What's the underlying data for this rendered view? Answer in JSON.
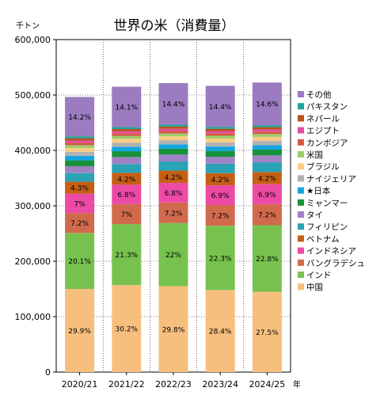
{
  "chart_data": {
    "type": "bar",
    "stacked": true,
    "title": "世界の米（消費量）",
    "unit_label": "千トン",
    "x_unit": "年",
    "categories": [
      "2020/21",
      "2021/22",
      "2022/23",
      "2023/24",
      "2024/25"
    ],
    "ylim": [
      0,
      600000
    ],
    "y_ticks": [
      "0",
      "100,000",
      "200,000",
      "300,000",
      "400,000",
      "500,000",
      "600,000"
    ],
    "legend_position": "right",
    "series": [
      {
        "name": "中国",
        "color": "#f7bf7e",
        "values": [
          150000,
          157000,
          155000,
          148000,
          145000
        ],
        "labels": [
          "29.9%",
          "30.2%",
          "29.8%",
          "28.4%",
          "27.5%"
        ]
      },
      {
        "name": "インド",
        "color": "#77c24f",
        "values": [
          101000,
          110000,
          114000,
          116000,
          120000
        ],
        "labels": [
          "20.1%",
          "21.3%",
          "22%",
          "22.3%",
          "22.8%"
        ]
      },
      {
        "name": "バングラデシュ",
        "color": "#d16a4d",
        "values": [
          36000,
          36000,
          37000,
          37500,
          38000
        ],
        "labels": [
          "7.2%",
          "7%",
          "7.2%",
          "7.2%",
          "7.2%"
        ]
      },
      {
        "name": "インドネシア",
        "color": "#ed4aa6",
        "values": [
          35000,
          35000,
          35500,
          35500,
          36000
        ],
        "labels": [
          "7%",
          "6.8%",
          "6.8%",
          "6.9%",
          "6.9%"
        ]
      },
      {
        "name": "ベトナム",
        "color": "#c65f16",
        "values": [
          21500,
          21500,
          22000,
          22000,
          22000
        ],
        "labels": [
          "4.3%",
          "4.2%",
          "4.2%",
          "4.2%",
          "4.2%"
        ]
      },
      {
        "name": "フィリピン",
        "color": "#2aa3b6",
        "values": [
          15500,
          16000,
          16500,
          17000,
          17500
        ],
        "labels": [
          "",
          "",
          "",
          "",
          ""
        ]
      },
      {
        "name": "タイ",
        "color": "#9e82c4",
        "values": [
          12500,
          12500,
          12500,
          12500,
          12500
        ],
        "labels": [
          "",
          "",
          "",
          "",
          ""
        ]
      },
      {
        "name": "ミャンマー",
        "color": "#17913a",
        "values": [
          10500,
          10500,
          10500,
          10500,
          10500
        ],
        "labels": [
          "",
          "",
          "",
          "",
          ""
        ]
      },
      {
        "name": "★日本",
        "color": "#13a5e0",
        "values": [
          8000,
          8000,
          8000,
          8000,
          8000
        ],
        "labels": [
          "",
          "",
          "",
          "",
          ""
        ]
      },
      {
        "name": "ナイジェリア",
        "color": "#b2b2b2",
        "values": [
          7500,
          7500,
          7500,
          7500,
          8000
        ],
        "labels": [
          "",
          "",
          "",
          "",
          ""
        ]
      },
      {
        "name": "ブラジル",
        "color": "#f9cd83",
        "values": [
          7000,
          7000,
          7000,
          7000,
          7000
        ],
        "labels": [
          "",
          "",
          "",
          "",
          ""
        ]
      },
      {
        "name": "米国",
        "color": "#9ccd69",
        "values": [
          5000,
          5000,
          5000,
          5000,
          5000
        ],
        "labels": [
          "",
          "",
          "",
          "",
          ""
        ]
      },
      {
        "name": "カンボジア",
        "color": "#d25a45",
        "values": [
          4500,
          4500,
          4500,
          4500,
          4500
        ],
        "labels": [
          "",
          "",
          "",
          "",
          ""
        ]
      },
      {
        "name": "エジプト",
        "color": "#e44fa0",
        "values": [
          4000,
          4000,
          4000,
          4000,
          4000
        ],
        "labels": [
          "",
          "",
          "",
          "",
          ""
        ]
      },
      {
        "name": "ネパール",
        "color": "#b8511a",
        "values": [
          4000,
          4000,
          4000,
          4000,
          4000
        ],
        "labels": [
          "",
          "",
          "",
          "",
          ""
        ]
      },
      {
        "name": "パキスタン",
        "color": "#1fa39a",
        "values": [
          3500,
          3500,
          3500,
          3500,
          3500
        ],
        "labels": [
          "",
          "",
          "",
          "",
          ""
        ]
      },
      {
        "name": "その他",
        "color": "#9b7cc0",
        "values": [
          71000,
          73000,
          75000,
          74000,
          77000
        ],
        "labels": [
          "14.2%",
          "14.1%",
          "14.4%",
          "14.4%",
          "14.6%"
        ]
      }
    ]
  }
}
